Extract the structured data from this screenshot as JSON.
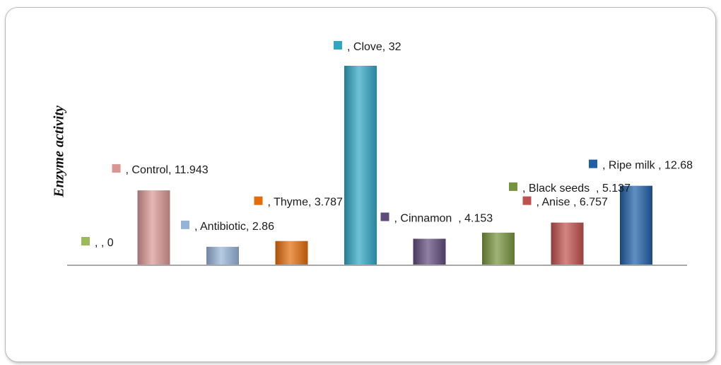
{
  "chart_data": {
    "type": "bar",
    "title": "",
    "xlabel": "",
    "ylabel": "Enzyme activity",
    "ylim": [
      0,
      32
    ],
    "grid": false,
    "legend": "none",
    "series": [
      {
        "values": [
          0,
          11.943,
          2.86,
          3.787,
          32,
          4.153,
          5.137,
          6.757,
          12.68
        ],
        "labels": [
          ", , 0",
          ", Control, 11.943",
          ", Antibiotic, 2.86",
          ", Thyme, 3.787",
          ", Clove, 32",
          ", Cinnamon  , 4.153",
          ", Black seeds  , 5.137",
          ", Anise , 6.757",
          ", Ripe milk , 12.68"
        ],
        "colors": [
          "#9bbb59",
          "#d99694",
          "#95b3d7",
          "#e46c0a",
          "#31a6c4",
          "#604a7b",
          "#77933c",
          "#c0504d",
          "#1f5fa8"
        ]
      }
    ]
  }
}
